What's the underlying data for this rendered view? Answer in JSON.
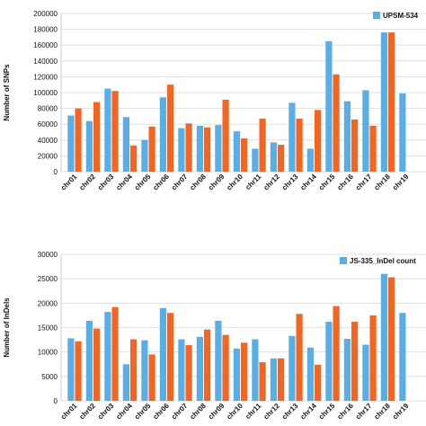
{
  "chart_data": [
    {
      "type": "bar",
      "ylabel": "Number of SNPs",
      "ylim": [
        0,
        200000
      ],
      "yticks": [
        "0",
        "20000",
        "40000",
        "60000",
        "80000",
        "100000",
        "120000",
        "140000",
        "160000",
        "180000",
        "200000"
      ],
      "categories": [
        "chr01",
        "chr02",
        "chr03",
        "chr04",
        "chr05",
        "chr06",
        "chr07",
        "chr08",
        "chr09",
        "chr10",
        "chr11",
        "chr12",
        "chr13",
        "chr14",
        "chr15",
        "chr16",
        "chr17",
        "chr18",
        "chr19"
      ],
      "series": [
        {
          "name": "UPSM-534",
          "color": "#5aaee6",
          "values": [
            71000,
            64000,
            105000,
            69000,
            40000,
            94000,
            55000,
            58000,
            59000,
            51000,
            29000,
            37000,
            87000,
            29000,
            165000,
            89000,
            103000,
            176000,
            99000
          ]
        },
        {
          "color": "#f26522",
          "values": [
            80000,
            88000,
            102000,
            33000,
            57000,
            110000,
            61000,
            56000,
            91000,
            42000,
            67000,
            34000,
            67000,
            78000,
            123000,
            66000,
            58000,
            176000,
            null
          ]
        }
      ],
      "legend": "top-right",
      "grid": true
    },
    {
      "type": "bar",
      "ylabel": "Number of InDels",
      "ylim": [
        0,
        30000
      ],
      "yticks": [
        "0",
        "5000",
        "10000",
        "15000",
        "20000",
        "25000",
        "30000"
      ],
      "categories": [
        "chr01",
        "chr02",
        "chr03",
        "chr04",
        "chr05",
        "chr06",
        "chr07",
        "chr08",
        "chr09",
        "chr10",
        "chr11",
        "chr12",
        "chr13",
        "chr14",
        "chr15",
        "chr16",
        "chr17",
        "chr18",
        "chr19"
      ],
      "series": [
        {
          "name": "JS-335_InDel count",
          "color": "#5aaee6",
          "values": [
            12800,
            16400,
            18200,
            7500,
            12400,
            19000,
            12600,
            13100,
            16400,
            10700,
            12600,
            8700,
            13300,
            10900,
            16200,
            12700,
            11500,
            26000,
            18000
          ]
        },
        {
          "color": "#f26522",
          "values": [
            12200,
            14800,
            19200,
            12600,
            9500,
            18000,
            11400,
            14600,
            13500,
            11900,
            7900,
            8700,
            17800,
            7400,
            19400,
            16200,
            17500,
            25300,
            null
          ]
        }
      ],
      "legend": "top-right",
      "grid": true
    }
  ]
}
